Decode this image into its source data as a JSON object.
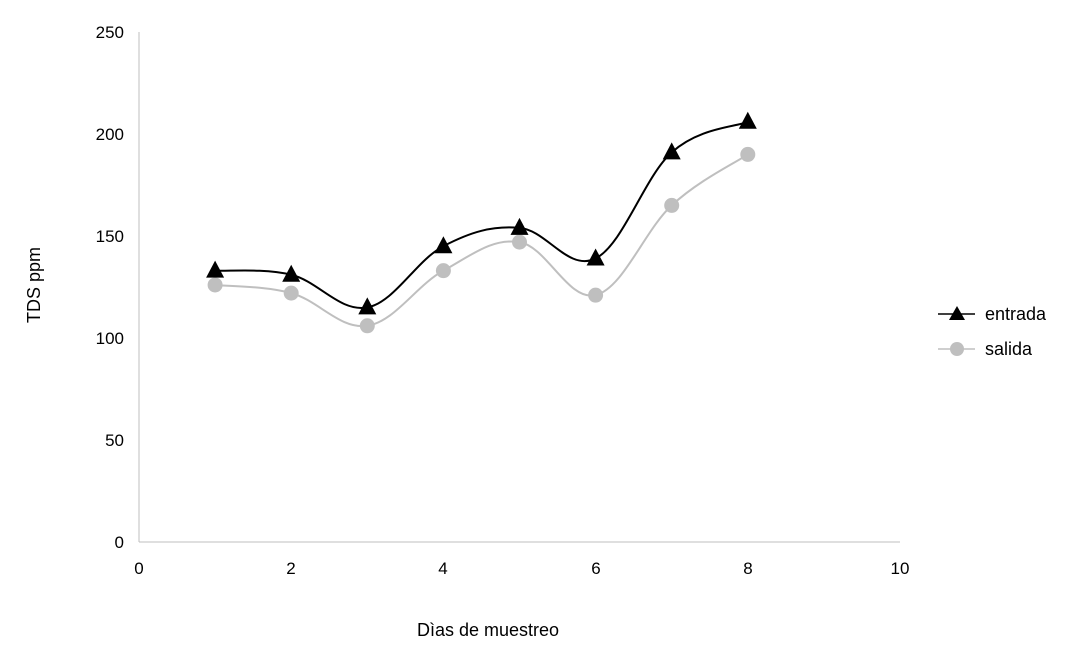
{
  "chart_data": {
    "type": "scatter",
    "title": "",
    "xlabel": "Dìas de muestreo",
    "ylabel": "TDS ppm",
    "xlim": [
      0,
      10
    ],
    "ylim": [
      0,
      250
    ],
    "x_ticks": [
      "0",
      "2",
      "4",
      "6",
      "8",
      "10"
    ],
    "y_ticks": [
      "0",
      "50",
      "100",
      "150",
      "200",
      "250"
    ],
    "grid": false,
    "smooth_lines": true,
    "legend_position": "right",
    "series": [
      {
        "name": "entrada",
        "marker": "triangle",
        "color": "#000000",
        "x": [
          1,
          2,
          3,
          4,
          5,
          6,
          7,
          8
        ],
        "y": [
          133,
          131,
          115,
          145,
          154,
          139,
          191,
          206
        ]
      },
      {
        "name": "salida",
        "marker": "circle",
        "color": "#bfbfbf",
        "x": [
          1,
          2,
          3,
          4,
          5,
          6,
          7,
          8
        ],
        "y": [
          126,
          122,
          106,
          133,
          147,
          121,
          165,
          190
        ]
      }
    ]
  }
}
